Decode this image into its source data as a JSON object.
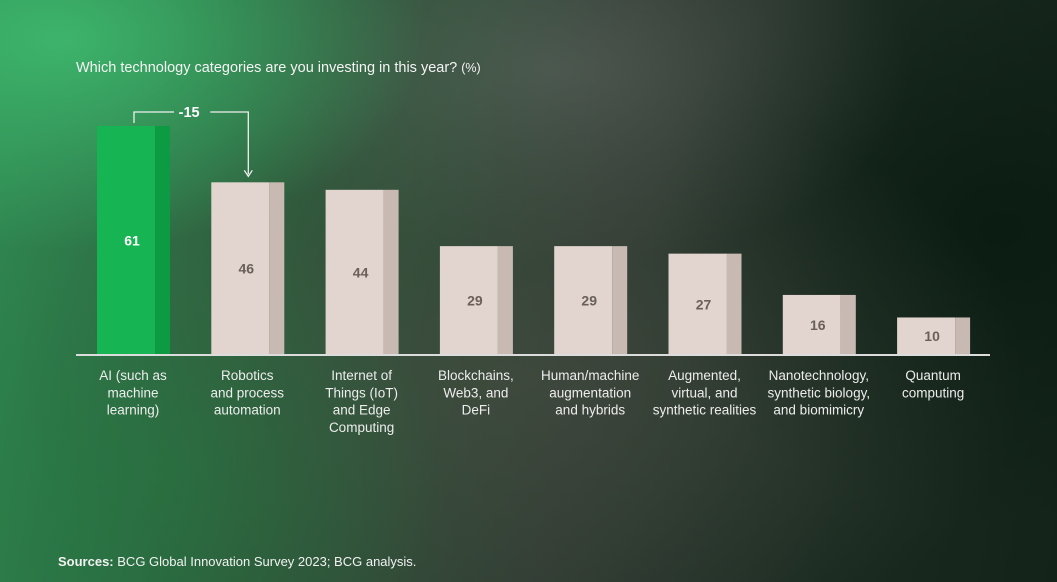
{
  "title": {
    "text": "Which technology categories are you investing in this year?",
    "unit": "(%)"
  },
  "annotation": {
    "text": "-15"
  },
  "source": {
    "label": "Sources:",
    "text": "BCG Global Innovation Survey 2023; BCG analysis."
  },
  "colors": {
    "highlight_front": "#16b452",
    "highlight_side": "#0c9a42",
    "bar_front": "#e2d5cf",
    "bar_side": "#c8bab3",
    "highlight_label": "#ffffff",
    "bar_label": "#6a5f5a",
    "axis": "#dcdcdc"
  },
  "chart_data": {
    "type": "bar",
    "title": "Which technology categories are you investing in this year? (%)",
    "ylim": [
      0,
      61
    ],
    "grid": false,
    "highlight_index": 0,
    "categories": [
      [
        "AI (such as",
        "machine",
        "learning)"
      ],
      [
        "Robotics",
        "and process",
        "automation"
      ],
      [
        "Internet of",
        "Things (IoT)",
        "and Edge",
        "Computing"
      ],
      [
        "Blockchains,",
        "Web3, and",
        "DeFi"
      ],
      [
        "Human/machine",
        "augmentation",
        "and hybrids"
      ],
      [
        "Augmented,",
        "virtual, and",
        "synthetic realities"
      ],
      [
        "Nanotechnology,",
        "synthetic biology,",
        "and biomimicry"
      ],
      [
        "Quantum",
        "computing"
      ]
    ],
    "values": [
      61,
      46,
      44,
      29,
      29,
      27,
      16,
      10
    ],
    "annotations": [
      {
        "text": "-15",
        "from": 0,
        "to": 1
      }
    ]
  }
}
